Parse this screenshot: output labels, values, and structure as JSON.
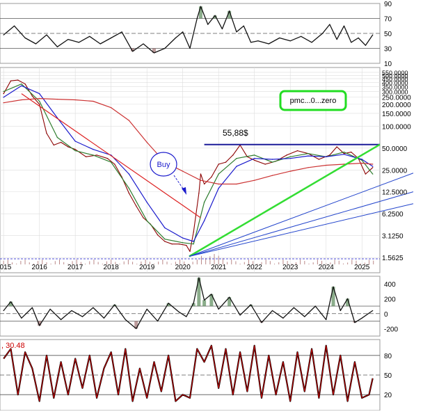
{
  "chart_data": [
    {
      "panel": "rsi-top",
      "type": "line",
      "ylim": [
        10,
        90
      ],
      "tick_labels": [
        "90",
        "70",
        "50",
        "30",
        "10"
      ],
      "ticks": [
        90,
        70,
        50,
        30,
        10
      ],
      "reference_lines": [
        70,
        50,
        30
      ],
      "grid": true,
      "series": [
        {
          "x": [
            2015.0,
            2015.3,
            2015.6,
            2015.9,
            2016.2,
            2016.5,
            2016.8,
            2017.1,
            2017.4,
            2017.7,
            2018.0,
            2018.3,
            2018.6,
            2018.9,
            2019.2,
            2019.5,
            2019.8,
            2020.0,
            2020.2,
            2020.4,
            2020.5,
            2020.7,
            2020.9,
            2021.1,
            2021.3,
            2021.5,
            2021.7,
            2021.9,
            2022.1,
            2022.4,
            2022.7,
            2023.0,
            2023.3,
            2023.6,
            2023.9,
            2024.1,
            2024.3,
            2024.5,
            2024.7,
            2024.9,
            2025.1,
            2025.3
          ],
          "values": [
            48,
            60,
            44,
            36,
            48,
            32,
            42,
            38,
            46,
            36,
            44,
            52,
            26,
            36,
            24,
            30,
            44,
            52,
            30,
            70,
            86,
            62,
            74,
            56,
            80,
            52,
            60,
            38,
            40,
            36,
            44,
            40,
            46,
            38,
            50,
            62,
            42,
            60,
            38,
            44,
            34,
            48
          ]
        }
      ]
    },
    {
      "panel": "price",
      "type": "line",
      "x_ticks": [
        "2015",
        "2016",
        "2017",
        "2018",
        "2019",
        "2020",
        "2021",
        "2022",
        "2023",
        "2024",
        "2025"
      ],
      "y_tick_labels": [
        "550.0000",
        "500.0000",
        "450.0000",
        "400.0000",
        "350.0000",
        "300.0000",
        "250.0000",
        "200.0000",
        "150.0000",
        "100.0000",
        "50.0000",
        "25.0000",
        "12.5000",
        "6.2500",
        "3.1250",
        "1.5625"
      ],
      "y_ticks": [
        550,
        500,
        450,
        400,
        350,
        300,
        250,
        200,
        150,
        100,
        50,
        25,
        12.5,
        6.25,
        3.125,
        1.5625
      ],
      "scale": "log",
      "ylim": [
        1.5,
        600
      ],
      "grid": true,
      "series": [
        {
          "kind": "price",
          "x": [
            2015.0,
            2015.2,
            2015.4,
            2015.6,
            2015.8,
            2016.0,
            2016.2,
            2016.4,
            2016.6,
            2016.8,
            2017.0,
            2017.3,
            2017.6,
            2017.9,
            2018.1,
            2018.3,
            2018.5,
            2018.7,
            2018.9,
            2019.1,
            2019.3,
            2019.5,
            2019.7,
            2019.9,
            2020.1,
            2020.2,
            2020.3,
            2020.45,
            2020.5,
            2020.6,
            2020.8,
            2021.0,
            2021.2,
            2021.4,
            2021.6,
            2021.8,
            2022.0,
            2022.3,
            2022.6,
            2022.9,
            2023.2,
            2023.5,
            2023.8,
            2024.1,
            2024.3,
            2024.5,
            2024.7,
            2024.9,
            2025.1,
            2025.3
          ],
          "values": [
            280,
            420,
            430,
            380,
            260,
            200,
            80,
            55,
            60,
            52,
            48,
            38,
            40,
            36,
            30,
            20,
            12,
            8,
            5.5,
            4.5,
            3.2,
            2.6,
            2.4,
            2.4,
            2.3,
            1.9,
            3.5,
            12,
            22,
            16,
            20,
            30,
            32,
            40,
            55,
            38,
            34,
            30,
            33,
            40,
            46,
            42,
            35,
            40,
            52,
            42,
            44,
            36,
            22,
            27
          ]
        },
        {
          "kind": "ma-short",
          "x": [
            2015.0,
            2015.5,
            2016.0,
            2016.5,
            2017.0,
            2017.5,
            2018.0,
            2018.5,
            2019.0,
            2019.5,
            2020.0,
            2020.3,
            2020.6,
            2021.0,
            2021.5,
            2022.0,
            2022.5,
            2023.0,
            2023.5,
            2024.0,
            2024.5,
            2025.0,
            2025.3
          ],
          "values": [
            300,
            380,
            220,
            70,
            46,
            40,
            32,
            14,
            5,
            2.8,
            2.5,
            2.4,
            9,
            22,
            36,
            40,
            32,
            38,
            42,
            38,
            44,
            34,
            22
          ]
        },
        {
          "kind": "ma-mid",
          "x": [
            2015.0,
            2015.5,
            2016.0,
            2016.5,
            2017.0,
            2017.5,
            2018.0,
            2018.5,
            2019.0,
            2019.5,
            2020.0,
            2020.3,
            2020.6,
            2021.0,
            2021.5,
            2022.0,
            2022.5,
            2023.0,
            2023.5,
            2024.0,
            2024.5,
            2025.0,
            2025.3
          ],
          "values": [
            250,
            360,
            280,
            130,
            62,
            48,
            40,
            22,
            9,
            4,
            2.9,
            2.6,
            5,
            14,
            28,
            36,
            35,
            36,
            39,
            38,
            41,
            35,
            28
          ]
        },
        {
          "kind": "ma-long",
          "x": [
            2015.0,
            2015.5,
            2016.0,
            2016.5,
            2017.0,
            2017.5,
            2018.0,
            2018.5,
            2019.0,
            2019.5,
            2020.0,
            2020.5,
            2021.0,
            2021.5,
            2022.0,
            2022.5,
            2023.0,
            2023.5,
            2024.0,
            2024.5,
            2025.0,
            2025.3
          ],
          "values": [
            210,
            230,
            240,
            235,
            230,
            220,
            180,
            120,
            60,
            32,
            24,
            18,
            16,
            16,
            18,
            21,
            24,
            27,
            29,
            30,
            31,
            30
          ]
        }
      ],
      "annotations": {
        "resistance_value": "55,88$",
        "resistance_level": 55.88,
        "buy_label": "Buy",
        "box_label": "pmc...0...zero"
      }
    },
    {
      "panel": "cci",
      "type": "line",
      "ylim": [
        -300,
        500
      ],
      "tick_labels": [
        "400",
        "200",
        "0",
        "-200"
      ],
      "ticks": [
        400,
        200,
        0,
        -200
      ],
      "reference_lines": [
        100,
        0,
        -100
      ],
      "grid": true,
      "series": [
        {
          "x": [
            2015.0,
            2015.2,
            2015.5,
            2015.8,
            2016.0,
            2016.3,
            2016.6,
            2016.9,
            2017.2,
            2017.5,
            2017.8,
            2018.1,
            2018.4,
            2018.7,
            2019.0,
            2019.3,
            2019.6,
            2019.9,
            2020.1,
            2020.3,
            2020.45,
            2020.6,
            2020.8,
            2021.0,
            2021.3,
            2021.6,
            2021.9,
            2022.2,
            2022.5,
            2022.8,
            2023.1,
            2023.4,
            2023.7,
            2024.0,
            2024.2,
            2024.4,
            2024.6,
            2024.8,
            2025.0,
            2025.3
          ],
          "values": [
            40,
            160,
            -60,
            80,
            -160,
            60,
            -80,
            40,
            -40,
            80,
            -60,
            120,
            -80,
            -200,
            60,
            -100,
            140,
            20,
            -40,
            140,
            480,
            180,
            260,
            60,
            220,
            -20,
            120,
            -120,
            40,
            -60,
            80,
            -40,
            100,
            -80,
            360,
            40,
            200,
            -120,
            -60,
            40
          ]
        }
      ]
    },
    {
      "panel": "stoch",
      "type": "line",
      "header": ", 30.48",
      "ylim": [
        0,
        100
      ],
      "tick_labels": [
        "80",
        "50",
        "20"
      ],
      "ticks": [
        80,
        50,
        20
      ],
      "reference_lines": [
        80,
        50,
        20
      ],
      "grid": true,
      "series": [
        {
          "x": [
            2015.0,
            2015.2,
            2015.4,
            2015.6,
            2015.8,
            2016.0,
            2016.2,
            2016.4,
            2016.6,
            2016.8,
            2017.0,
            2017.2,
            2017.4,
            2017.6,
            2017.8,
            2018.0,
            2018.2,
            2018.4,
            2018.6,
            2018.8,
            2019.0,
            2019.2,
            2019.4,
            2019.6,
            2019.8,
            2020.0,
            2020.2,
            2020.4,
            2020.6,
            2020.8,
            2021.0,
            2021.2,
            2021.4,
            2021.6,
            2021.8,
            2022.0,
            2022.2,
            2022.4,
            2022.6,
            2022.8,
            2023.0,
            2023.2,
            2023.4,
            2023.6,
            2023.8,
            2024.0,
            2024.2,
            2024.4,
            2024.6,
            2024.8,
            2025.0,
            2025.2,
            2025.3
          ],
          "values": [
            75,
            90,
            20,
            85,
            60,
            10,
            80,
            15,
            70,
            20,
            75,
            30,
            80,
            15,
            60,
            85,
            20,
            90,
            10,
            60,
            15,
            70,
            25,
            80,
            10,
            20,
            15,
            90,
            70,
            95,
            30,
            90,
            20,
            85,
            25,
            95,
            15,
            80,
            20,
            70,
            10,
            85,
            25,
            90,
            15,
            95,
            20,
            80,
            10,
            70,
            15,
            20,
            45
          ]
        }
      ]
    }
  ]
}
